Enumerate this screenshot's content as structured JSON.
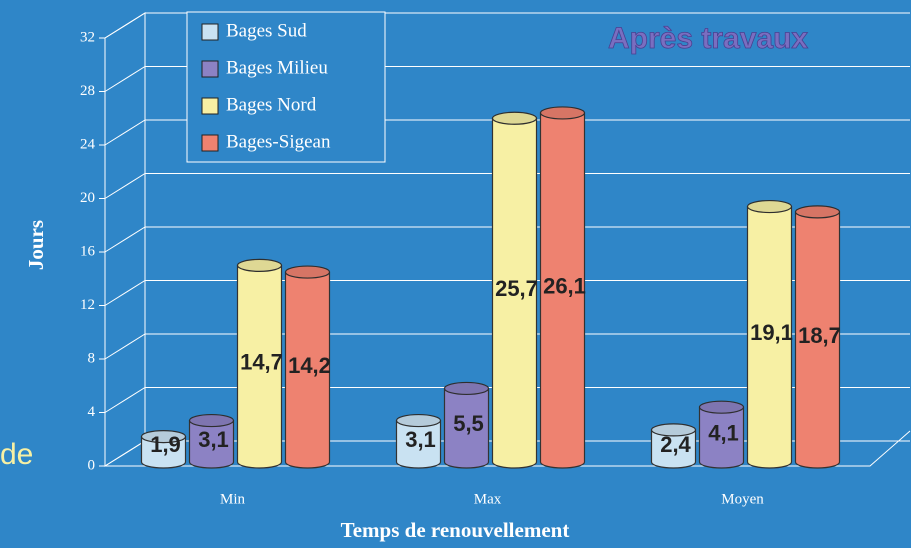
{
  "chart_data": {
    "type": "bar3d",
    "title": "Après travaux",
    "side_text": "de",
    "x_label": "Temps de renouvellement",
    "y_label": "Jours",
    "categories": [
      "Min",
      "Max",
      "Moyen"
    ],
    "series": [
      {
        "name": "Bages Sud",
        "color": "#c9e2f2",
        "values": [
          1.9,
          3.1,
          2.4
        ],
        "value_labels": [
          "1,9",
          "3,1",
          "2,4"
        ]
      },
      {
        "name": "Bages Milieu",
        "color": "#8c82c4",
        "values": [
          3.1,
          5.5,
          4.1
        ],
        "value_labels": [
          "3,1",
          "5,5",
          "4,1"
        ]
      },
      {
        "name": "Bages Nord",
        "color": "#f7f0a4",
        "values": [
          14.7,
          25.7,
          19.1
        ],
        "value_labels": [
          "14,7",
          "25,7",
          "19,1"
        ]
      },
      {
        "name": "Bages-Sigean",
        "color": "#ee8270",
        "values": [
          14.2,
          26.1,
          18.7
        ],
        "value_labels": [
          "14,2",
          "26,1",
          "18,7"
        ]
      }
    ],
    "ylim": [
      0,
      32
    ],
    "yticks": [
      0,
      4,
      8,
      12,
      16,
      20,
      24,
      28,
      32
    ],
    "grid": true,
    "legend": "top-left"
  }
}
